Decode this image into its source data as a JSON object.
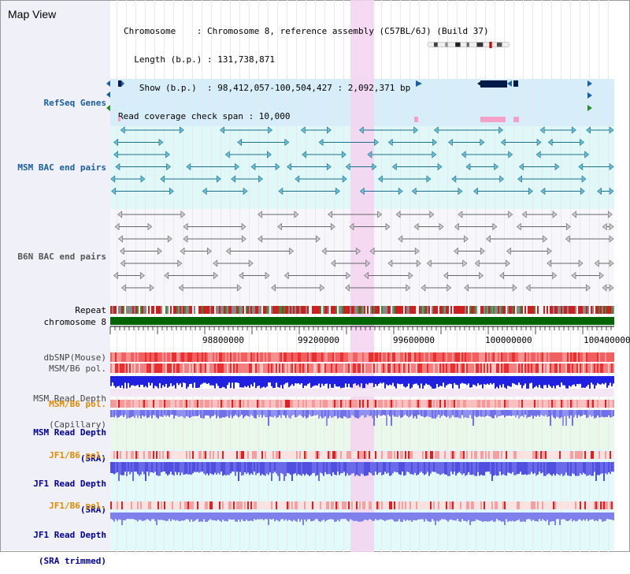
{
  "header": {
    "title": "Map View",
    "info_lines": [
      "Chromosome    : Chromosome 8, reference assembly (C57BL/6J) (Build 37)",
      "  Length (b.p.) : 131,738,871",
      "   Show (b.p.)  : 98,412,057-100,504,427 : 2,092,371 bp",
      "Read coverage check span : 10,000"
    ]
  },
  "tracks": {
    "refseq": "RefSeq Genes",
    "msm_bac": "MSM BAC end pairs",
    "b6n_bac": "B6N BAC end pairs",
    "repeat": "Repeat",
    "chrom": "chromosome 8",
    "dbsnp": "dbSNP(Mouse)",
    "msm_b6_pol": "MSM/B6 pol.",
    "msm_depth_cap_1": "MSM Read Depth",
    "msm_depth_cap_2": "(Capillary)",
    "msm_b6_pol2": "MSM/B6 pol.",
    "msm_depth_sra_1": "MSM Read Depth",
    "msm_depth_sra_2": "(SRA)",
    "jf1_b6_pol": "JF1/B6 pol.",
    "jf1_depth_sra_1": "JF1 Read Depth",
    "jf1_depth_sra_2": "(SRA)",
    "jf1_b6_pol2": "JF1/B6 pol.",
    "jf1_depth_trim_1": "JF1 Read Depth",
    "jf1_depth_trim_2": "(SRA trimmed)"
  },
  "axis": {
    "ticks": [
      "98800000",
      "99200000",
      "99600000",
      "100000000",
      "100400000"
    ]
  },
  "colors": {
    "refseq_bg": "#d6eefa",
    "msm_bac_bg": "#e0f8f8",
    "b6n_bac_bg": "#f4f4f8",
    "highlight": "#f4d2f0",
    "msm_label": "#1a5fa0",
    "orange_label": "#e08a00",
    "navy_label": "#000099",
    "chrom_bar": "#006400"
  }
}
